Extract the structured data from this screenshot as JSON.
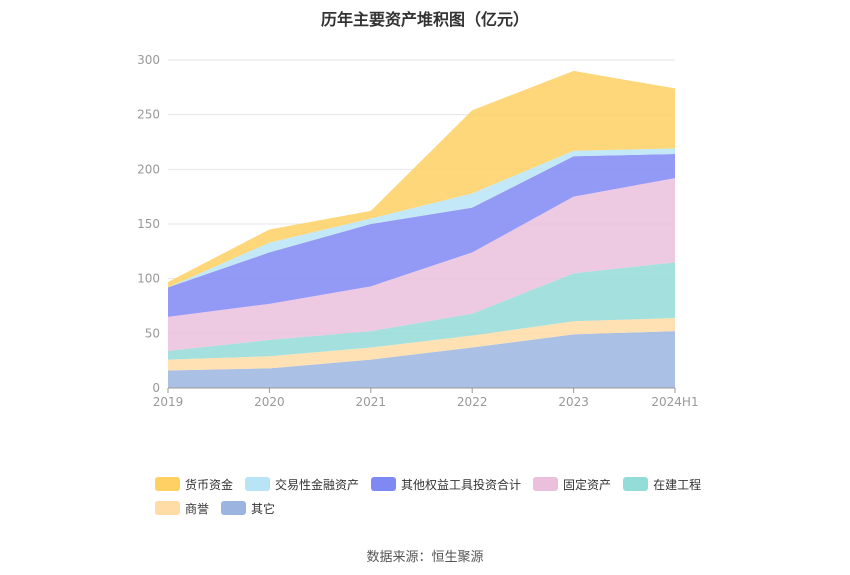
{
  "chart_data": {
    "type": "area",
    "stacked": true,
    "title": "历年主要资产堆积图（亿元）",
    "categories": [
      "2019",
      "2020",
      "2021",
      "2022",
      "2023",
      "2024H1"
    ],
    "ylim": [
      0,
      300
    ],
    "yticks": [
      "0",
      "50",
      "100",
      "150",
      "200",
      "250",
      "300"
    ],
    "grid": true,
    "legend_position": "bottom",
    "series": [
      {
        "name": "其它",
        "color": "#9bb5e0",
        "values": [
          16,
          18,
          26,
          37,
          49,
          52
        ]
      },
      {
        "name": "商誉",
        "color": "#ffdca6",
        "values": [
          10,
          11,
          11,
          11,
          12,
          12
        ]
      },
      {
        "name": "在建工程",
        "color": "#94dcd8",
        "values": [
          8,
          15,
          15,
          20,
          44,
          51
        ]
      },
      {
        "name": "固定资产",
        "color": "#eac0dd",
        "values": [
          31,
          33,
          41,
          56,
          70,
          77
        ]
      },
      {
        "name": "其他权益工具投资合计",
        "color": "#8088f4",
        "values": [
          27,
          47,
          57,
          41,
          37,
          22
        ]
      },
      {
        "name": "交易性金融资产",
        "color": "#b8e4f6",
        "values": [
          0,
          9,
          5,
          13,
          5,
          5
        ]
      },
      {
        "name": "货币资金",
        "color": "#ffd064",
        "values": [
          5,
          12,
          7,
          76,
          73,
          55
        ]
      }
    ],
    "legend_order": [
      "货币资金",
      "交易性金融资产",
      "其他权益工具投资合计",
      "固定资产",
      "在建工程",
      "商誉",
      "其它"
    ]
  },
  "source": "数据来源：恒生聚源"
}
